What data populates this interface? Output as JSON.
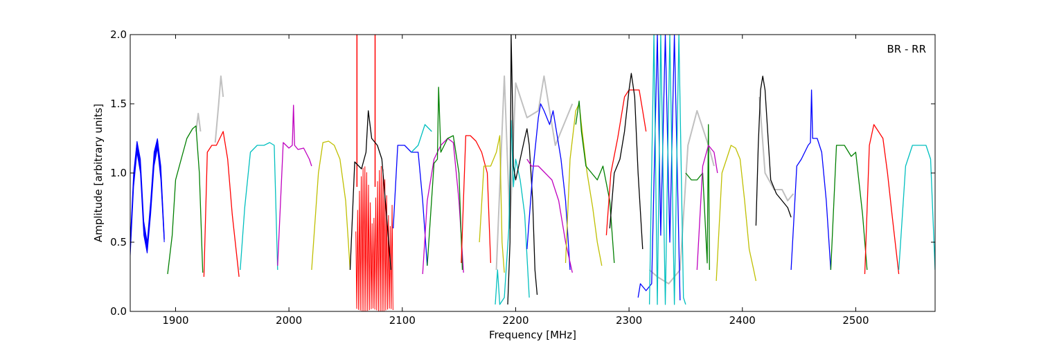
{
  "chart_data": {
    "type": "line",
    "title": "",
    "annotation": "BR - RR",
    "xlabel": "Frequency [MHz]",
    "ylabel": "Amplitude [arbitrary units]",
    "xlim": [
      1860,
      2570
    ],
    "ylim": [
      0.0,
      2.0
    ],
    "xticks": [
      1900,
      2000,
      2100,
      2200,
      2300,
      2400,
      2500
    ],
    "xtick_labels": [
      "1900",
      "2000",
      "2100",
      "2200",
      "2300",
      "2400",
      "2500"
    ],
    "yticks": [
      0.0,
      0.5,
      1.0,
      1.5,
      2.0
    ],
    "ytick_labels": [
      "0.0",
      "0.5",
      "1.0",
      "1.5",
      "2.0"
    ],
    "grid": false,
    "colors": {
      "background": "#c0c0c0",
      "blue": "#0000ff",
      "green": "#007f00",
      "red": "#ff0000",
      "cyan": "#00bfbf",
      "magenta": "#bf00bf",
      "yellow": "#bfbf00",
      "black": "#000000"
    },
    "series": [
      {
        "color": "#c0c0c0",
        "x": [
          2183,
          2190,
          2195,
          2200,
          2210,
          2220,
          2225,
          2235,
          2250
        ],
        "y": [
          0.3,
          1.7,
          0.6,
          1.65,
          1.4,
          1.45,
          1.7,
          1.2,
          1.5
        ]
      },
      {
        "color": "#c0c0c0",
        "x": [
          2318,
          2325,
          2335,
          2345,
          2352,
          2360,
          2370,
          2375
        ],
        "y": [
          0.3,
          0.25,
          0.2,
          0.3,
          1.2,
          1.45,
          1.2,
          1.05
        ]
      },
      {
        "color": "#c0c0c0",
        "x": [
          2415,
          2420,
          2428,
          2435,
          2440,
          2445
        ],
        "y": [
          1.55,
          1.0,
          0.88,
          0.88,
          0.8,
          0.85
        ]
      },
      {
        "color": "#c0c0c0",
        "x": [
          1935,
          1938,
          1940,
          1942
        ],
        "y": [
          1.22,
          1.5,
          1.7,
          1.55
        ]
      },
      {
        "color": "#c0c0c0",
        "x": [
          1918,
          1920,
          1922
        ],
        "y": [
          1.3,
          1.43,
          1.3
        ]
      },
      {
        "color": "#0000ff",
        "x": [
          1860,
          1863,
          1866,
          1869,
          1872,
          1875,
          1878,
          1881,
          1884,
          1887,
          1890
        ],
        "y": [
          0.45,
          0.95,
          1.22,
          1.05,
          0.6,
          0.45,
          0.75,
          1.1,
          1.24,
          1.0,
          0.52
        ]
      },
      {
        "color": "#007f00",
        "x": [
          1893,
          1897,
          1900,
          1905,
          1910,
          1915,
          1918,
          1921,
          1924
        ],
        "y": [
          0.27,
          0.55,
          0.95,
          1.1,
          1.25,
          1.32,
          1.34,
          1.0,
          0.28
        ]
      },
      {
        "color": "#ff0000",
        "x": [
          1925,
          1928,
          1932,
          1936,
          1939,
          1942,
          1946,
          1950,
          1956
        ],
        "y": [
          0.25,
          1.15,
          1.2,
          1.2,
          1.25,
          1.3,
          1.1,
          0.7,
          0.25
        ]
      },
      {
        "color": "#00bfbf",
        "x": [
          1957,
          1961,
          1966,
          1972,
          1978,
          1983,
          1987,
          1990
        ],
        "y": [
          0.3,
          0.75,
          1.15,
          1.2,
          1.2,
          1.22,
          1.2,
          0.3
        ]
      },
      {
        "color": "#bf00bf",
        "x": [
          1990,
          1995,
          2000,
          2003,
          2004,
          2005,
          2008,
          2013,
          2018,
          2020
        ],
        "y": [
          0.33,
          1.22,
          1.18,
          1.2,
          1.49,
          1.2,
          1.17,
          1.18,
          1.1,
          1.05
        ]
      },
      {
        "color": "#bfbf00",
        "x": [
          2020,
          2026,
          2030,
          2035,
          2040,
          2045,
          2050,
          2054
        ],
        "y": [
          0.3,
          1.0,
          1.22,
          1.23,
          1.2,
          1.1,
          0.8,
          0.3
        ]
      },
      {
        "color": "#000000",
        "x": [
          2054,
          2058,
          2064,
          2068,
          2070,
          2073,
          2078,
          2082,
          2086,
          2090
        ],
        "y": [
          0.3,
          1.08,
          1.03,
          1.15,
          1.45,
          1.25,
          1.2,
          1.1,
          0.7,
          0.3
        ]
      },
      {
        "color": "#0000ff",
        "x": [
          2092,
          2096,
          2102,
          2108,
          2114,
          2118,
          2122
        ],
        "y": [
          0.6,
          1.2,
          1.2,
          1.15,
          1.15,
          0.8,
          0.33
        ]
      },
      {
        "color": "#00bfbf",
        "x": [
          2108,
          2114,
          2120,
          2126
        ],
        "y": [
          1.15,
          1.2,
          1.35,
          1.3
        ]
      },
      {
        "color": "#bf00bf",
        "x": [
          2118,
          2122,
          2128,
          2134,
          2140,
          2145,
          2150,
          2154
        ],
        "y": [
          0.27,
          0.8,
          1.1,
          1.2,
          1.25,
          1.22,
          0.8,
          0.28
        ]
      },
      {
        "color": "#007f00",
        "x": [
          2122,
          2128,
          2131,
          2132,
          2134,
          2140,
          2145,
          2150,
          2153
        ],
        "y": [
          0.33,
          1.07,
          1.1,
          1.62,
          1.15,
          1.25,
          1.27,
          1.0,
          0.3
        ]
      },
      {
        "color": "#ff0000",
        "x": [
          2152,
          2156,
          2160,
          2165,
          2170,
          2175,
          2178
        ],
        "y": [
          0.35,
          1.27,
          1.27,
          1.23,
          1.15,
          1.0,
          0.35
        ]
      },
      {
        "color": "#bfbf00",
        "x": [
          2168,
          2172,
          2178,
          2183,
          2186,
          2188,
          2190
        ],
        "y": [
          0.5,
          1.05,
          1.05,
          1.15,
          1.27,
          0.5,
          0.28
        ]
      },
      {
        "color": "#00bfbf",
        "x": [
          2182,
          2184,
          2186,
          2190,
          2194,
          2196,
          2198,
          2200,
          2204,
          2208,
          2212
        ],
        "y": [
          0.05,
          0.3,
          0.05,
          0.1,
          0.6,
          1.38,
          0.9,
          1.1,
          0.95,
          0.7,
          0.1
        ]
      },
      {
        "color": "#000000",
        "x": [
          2193,
          2195,
          2196,
          2197,
          2198,
          2200,
          2204,
          2208,
          2210,
          2212,
          2215,
          2217,
          2219
        ],
        "y": [
          0.05,
          0.5,
          2.0,
          1.6,
          1.05,
          0.95,
          1.1,
          1.25,
          1.32,
          1.2,
          0.8,
          0.3,
          0.12
        ]
      },
      {
        "color": "#0000ff",
        "x": [
          2210,
          2215,
          2220,
          2222,
          2225,
          2230,
          2233,
          2236,
          2240,
          2244,
          2248
        ],
        "y": [
          0.45,
          1.0,
          1.4,
          1.5,
          1.45,
          1.35,
          1.45,
          1.3,
          1.1,
          0.8,
          0.3
        ]
      },
      {
        "color": "#bf00bf",
        "x": [
          2210,
          2214,
          2220,
          2226,
          2232,
          2238,
          2244,
          2250
        ],
        "y": [
          1.1,
          1.05,
          1.05,
          1.0,
          0.95,
          0.8,
          0.5,
          0.28
        ]
      },
      {
        "color": "#bfbf00",
        "x": [
          2244,
          2248,
          2253,
          2256,
          2258,
          2263,
          2268,
          2272,
          2276
        ],
        "y": [
          0.35,
          1.1,
          1.45,
          1.5,
          1.35,
          1.0,
          0.75,
          0.5,
          0.33
        ]
      },
      {
        "color": "#007f00",
        "x": [
          2253,
          2256,
          2258,
          2262,
          2267,
          2272,
          2277,
          2283,
          2287
        ],
        "y": [
          1.35,
          1.52,
          1.3,
          1.05,
          1.0,
          0.95,
          1.05,
          0.8,
          0.35
        ]
      },
      {
        "color": "#ff0000",
        "x": [
          2280,
          2284,
          2290,
          2296,
          2300,
          2305,
          2309,
          2312,
          2315
        ],
        "y": [
          0.55,
          1.0,
          1.25,
          1.55,
          1.6,
          1.6,
          1.6,
          1.45,
          1.3
        ]
      },
      {
        "color": "#000000",
        "x": [
          2283,
          2287,
          2292,
          2296,
          2300,
          2302,
          2305,
          2308,
          2312
        ],
        "y": [
          0.6,
          1.0,
          1.1,
          1.3,
          1.6,
          1.72,
          1.55,
          1.0,
          0.45
        ]
      },
      {
        "color": "#0000ff",
        "x": [
          2308,
          2310,
          2315,
          2320,
          2325,
          2328,
          2332,
          2336,
          2340,
          2345
        ],
        "y": [
          0.1,
          0.2,
          0.15,
          0.2,
          2.0,
          0.55,
          2.0,
          0.5,
          2.0,
          0.08
        ]
      },
      {
        "color": "#00bfbf",
        "x": [
          2318,
          2322,
          2325,
          2328,
          2332,
          2336,
          2340,
          2344,
          2348,
          2350
        ],
        "y": [
          0.05,
          2.0,
          0.05,
          2.0,
          0.05,
          2.0,
          0.05,
          2.0,
          0.1,
          0.05
        ]
      },
      {
        "color": "#007f00",
        "x": [
          2350,
          2355,
          2360,
          2365,
          2369,
          2370,
          2371
        ],
        "y": [
          1.0,
          0.95,
          0.95,
          1.0,
          0.35,
          1.35,
          0.3
        ]
      },
      {
        "color": "#bf00bf",
        "x": [
          2360,
          2365,
          2370,
          2375,
          2378
        ],
        "y": [
          0.3,
          1.05,
          1.2,
          1.15,
          1.0
        ]
      },
      {
        "color": "#bfbf00",
        "x": [
          2377,
          2382,
          2386,
          2390,
          2394,
          2398,
          2402,
          2406,
          2410,
          2412
        ],
        "y": [
          0.22,
          1.0,
          1.1,
          1.2,
          1.18,
          1.1,
          0.8,
          0.45,
          0.3,
          0.22
        ]
      },
      {
        "color": "#000000",
        "x": [
          2412,
          2414,
          2416,
          2418,
          2420,
          2425,
          2430,
          2435,
          2440,
          2443
        ],
        "y": [
          0.62,
          1.2,
          1.6,
          1.7,
          1.6,
          0.95,
          0.85,
          0.8,
          0.75,
          0.68
        ]
      },
      {
        "color": "#0000ff",
        "x": [
          2443,
          2448,
          2452,
          2458,
          2460,
          2461,
          2462,
          2466,
          2470,
          2474,
          2478
        ],
        "y": [
          0.3,
          1.05,
          1.1,
          1.2,
          1.22,
          1.6,
          1.25,
          1.25,
          1.15,
          0.8,
          0.3
        ]
      },
      {
        "color": "#007f00",
        "x": [
          2478,
          2483,
          2490,
          2496,
          2500,
          2506,
          2510
        ],
        "y": [
          0.3,
          1.2,
          1.2,
          1.12,
          1.15,
          0.7,
          0.3
        ]
      },
      {
        "color": "#ff0000",
        "x": [
          2508,
          2512,
          2516,
          2520,
          2524,
          2528,
          2532,
          2538
        ],
        "y": [
          0.27,
          1.2,
          1.35,
          1.3,
          1.25,
          1.0,
          0.7,
          0.27
        ]
      },
      {
        "color": "#00bfbf",
        "x": [
          2538,
          2544,
          2550,
          2556,
          2562,
          2566,
          2570
        ],
        "y": [
          0.3,
          1.05,
          1.2,
          1.2,
          1.2,
          1.1,
          0.3
        ]
      }
    ],
    "fill_bands": [
      {
        "color": "#0000ff",
        "x0": 1860,
        "x1": 1890,
        "x": [
          1860,
          1863,
          1866,
          1869,
          1872,
          1875,
          1878,
          1881,
          1884,
          1887,
          1890
        ],
        "ylow": [
          0.4,
          0.9,
          1.15,
          1.0,
          0.55,
          0.42,
          0.7,
          1.05,
          1.18,
          0.95,
          0.5
        ],
        "yhigh": [
          0.5,
          1.0,
          1.23,
          1.1,
          0.65,
          0.5,
          0.8,
          1.15,
          1.25,
          1.05,
          0.55
        ]
      },
      {
        "color": "#ff0000",
        "x0": 2059,
        "x1": 2092,
        "osc_low": 0.0,
        "osc_high": 1.05,
        "period": 1.6
      },
      {
        "color": "#ff0000",
        "spikes": [
          {
            "x": 2060,
            "y": 2.0
          },
          {
            "x": 2076,
            "y": 2.0
          }
        ]
      }
    ]
  }
}
